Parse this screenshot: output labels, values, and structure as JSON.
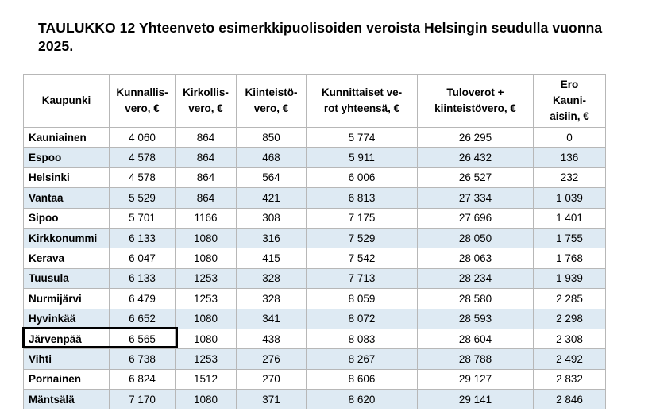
{
  "title": "TAULUKKO 12 Yhteenveto esimerkkipuolisoiden veroista Helsingin seudulla vuonna 2025.",
  "table": {
    "headers": [
      "Kaupunki",
      "Kunnallis-\nvero, €",
      "Kirkollis-\nvero, €",
      "Kiinteistö-\nvero, €",
      "Kunnittaiset ve-\nrot yhteensä, €",
      "Tuloverot +\nkiinteistövero, €",
      "Ero\nKauni-\naisiin, €"
    ],
    "rows": [
      [
        "Kauniainen",
        "4 060",
        "864",
        "850",
        "5 774",
        "26 295",
        "0"
      ],
      [
        "Espoo",
        "4 578",
        "864",
        "468",
        "5 911",
        "26 432",
        "136"
      ],
      [
        "Helsinki",
        "4 578",
        "864",
        "564",
        "6 006",
        "26 527",
        "232"
      ],
      [
        "Vantaa",
        "5 529",
        "864",
        "421",
        "6 813",
        "27 334",
        "1 039"
      ],
      [
        "Sipoo",
        "5 701",
        "1166",
        "308",
        "7 175",
        "27 696",
        "1 401"
      ],
      [
        "Kirkkonummi",
        "6 133",
        "1080",
        "316",
        "7 529",
        "28 050",
        "1 755"
      ],
      [
        "Kerava",
        "6 047",
        "1080",
        "415",
        "7 542",
        "28 063",
        "1 768"
      ],
      [
        "Tuusula",
        "6 133",
        "1253",
        "328",
        "7 713",
        "28 234",
        "1 939"
      ],
      [
        "Nurmijärvi",
        "6 479",
        "1253",
        "328",
        "8 059",
        "28 580",
        "2 285"
      ],
      [
        "Hyvinkää",
        "6 652",
        "1080",
        "341",
        "8 072",
        "28 593",
        "2 298"
      ],
      [
        "Järvenpää",
        "6 565",
        "1080",
        "438",
        "8 083",
        "28 604",
        "2 308"
      ],
      [
        "Vihti",
        "6 738",
        "1253",
        "276",
        "8 267",
        "28 788",
        "2 492"
      ],
      [
        "Pornainen",
        "6 824",
        "1512",
        "270",
        "8 606",
        "29 127",
        "2 832"
      ],
      [
        "Mäntsälä",
        "7 170",
        "1080",
        "371",
        "8 620",
        "29 141",
        "2 846"
      ]
    ]
  },
  "colors": {
    "alt_row": "#deeaf3",
    "border": "#b7b7b7",
    "highlight_box": "#000000"
  }
}
